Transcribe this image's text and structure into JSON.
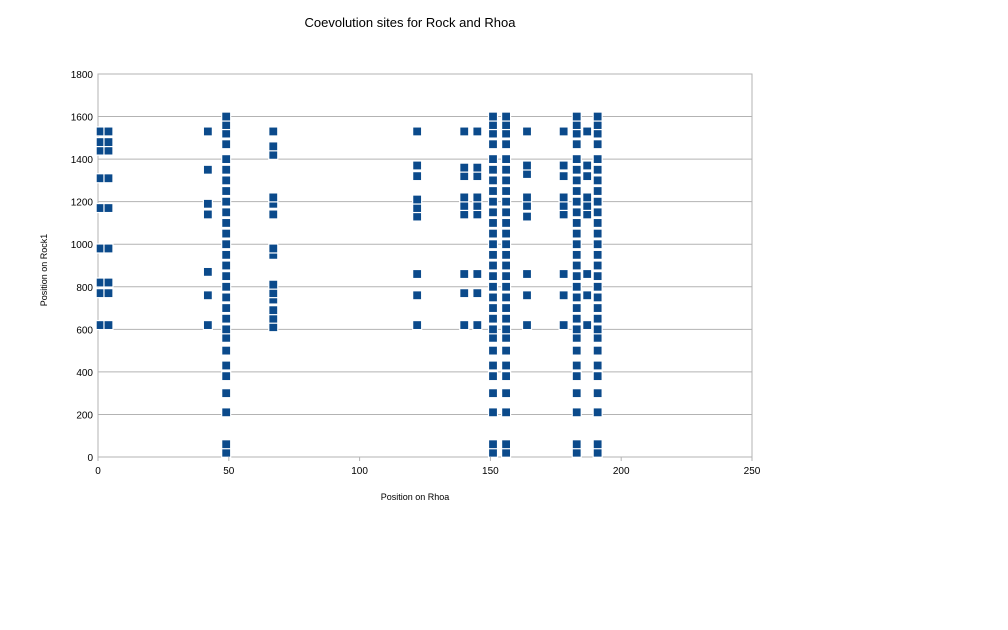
{
  "chart_data": {
    "type": "scatter",
    "title": "Coevolution sites for Rock and Rhoa",
    "xlabel": "Position on Rhoa",
    "ylabel": "Position on Rock1",
    "xlim": [
      0,
      250
    ],
    "ylim": [
      0,
      1800
    ],
    "x_ticks": [
      "0",
      "50",
      "100",
      "150",
      "200",
      "250"
    ],
    "y_ticks": [
      "0",
      "200",
      "400",
      "600",
      "800",
      "1000",
      "1200",
      "1400",
      "1600",
      "1800"
    ],
    "grid": true,
    "marker": "square",
    "color": "#0b4a8b",
    "series": [
      {
        "points": [
          [
            1,
            620
          ],
          [
            4,
            620
          ],
          [
            1,
            770
          ],
          [
            4,
            770
          ],
          [
            1,
            820
          ],
          [
            4,
            820
          ],
          [
            1,
            980
          ],
          [
            4,
            980
          ],
          [
            1,
            1170
          ],
          [
            4,
            1170
          ],
          [
            1,
            1310
          ],
          [
            4,
            1310
          ],
          [
            1,
            1440
          ],
          [
            4,
            1440
          ],
          [
            1,
            1480
          ],
          [
            4,
            1480
          ],
          [
            1,
            1530
          ],
          [
            4,
            1530
          ],
          [
            42,
            620
          ],
          [
            42,
            760
          ],
          [
            42,
            870
          ],
          [
            42,
            1140
          ],
          [
            42,
            1190
          ],
          [
            42,
            1350
          ],
          [
            42,
            1530
          ],
          [
            49,
            20
          ],
          [
            49,
            60
          ],
          [
            49,
            210
          ],
          [
            49,
            300
          ],
          [
            49,
            380
          ],
          [
            49,
            430
          ],
          [
            49,
            500
          ],
          [
            49,
            560
          ],
          [
            49,
            600
          ],
          [
            49,
            650
          ],
          [
            49,
            700
          ],
          [
            49,
            750
          ],
          [
            49,
            800
          ],
          [
            49,
            850
          ],
          [
            49,
            900
          ],
          [
            49,
            950
          ],
          [
            49,
            1000
          ],
          [
            49,
            1050
          ],
          [
            49,
            1100
          ],
          [
            49,
            1150
          ],
          [
            49,
            1200
          ],
          [
            49,
            1250
          ],
          [
            49,
            1300
          ],
          [
            49,
            1350
          ],
          [
            49,
            1400
          ],
          [
            49,
            1470
          ],
          [
            49,
            1520
          ],
          [
            49,
            1560
          ],
          [
            49,
            1600
          ],
          [
            67,
            610
          ],
          [
            67,
            650
          ],
          [
            67,
            690
          ],
          [
            67,
            740
          ],
          [
            67,
            770
          ],
          [
            67,
            810
          ],
          [
            67,
            950
          ],
          [
            67,
            980
          ],
          [
            67,
            1140
          ],
          [
            67,
            1190
          ],
          [
            67,
            1220
          ],
          [
            67,
            1420
          ],
          [
            67,
            1460
          ],
          [
            67,
            1530
          ],
          [
            122,
            620
          ],
          [
            122,
            760
          ],
          [
            122,
            860
          ],
          [
            122,
            1130
          ],
          [
            122,
            1170
          ],
          [
            122,
            1210
          ],
          [
            122,
            1320
          ],
          [
            122,
            1370
          ],
          [
            122,
            1530
          ],
          [
            140,
            620
          ],
          [
            145,
            620
          ],
          [
            140,
            770
          ],
          [
            145,
            770
          ],
          [
            140,
            860
          ],
          [
            145,
            860
          ],
          [
            140,
            1140
          ],
          [
            145,
            1140
          ],
          [
            140,
            1180
          ],
          [
            145,
            1180
          ],
          [
            140,
            1220
          ],
          [
            145,
            1220
          ],
          [
            140,
            1320
          ],
          [
            145,
            1320
          ],
          [
            140,
            1360
          ],
          [
            145,
            1360
          ],
          [
            140,
            1530
          ],
          [
            145,
            1530
          ],
          [
            151,
            20
          ],
          [
            151,
            60
          ],
          [
            151,
            210
          ],
          [
            151,
            300
          ],
          [
            151,
            380
          ],
          [
            151,
            430
          ],
          [
            151,
            500
          ],
          [
            151,
            560
          ],
          [
            151,
            600
          ],
          [
            151,
            650
          ],
          [
            151,
            700
          ],
          [
            151,
            750
          ],
          [
            151,
            800
          ],
          [
            151,
            850
          ],
          [
            151,
            900
          ],
          [
            151,
            950
          ],
          [
            151,
            1000
          ],
          [
            151,
            1050
          ],
          [
            151,
            1100
          ],
          [
            151,
            1150
          ],
          [
            151,
            1200
          ],
          [
            151,
            1250
          ],
          [
            151,
            1300
          ],
          [
            151,
            1350
          ],
          [
            151,
            1400
          ],
          [
            151,
            1470
          ],
          [
            151,
            1520
          ],
          [
            151,
            1560
          ],
          [
            151,
            1600
          ],
          [
            156,
            20
          ],
          [
            156,
            60
          ],
          [
            156,
            210
          ],
          [
            156,
            300
          ],
          [
            156,
            380
          ],
          [
            156,
            430
          ],
          [
            156,
            500
          ],
          [
            156,
            560
          ],
          [
            156,
            600
          ],
          [
            156,
            650
          ],
          [
            156,
            700
          ],
          [
            156,
            750
          ],
          [
            156,
            800
          ],
          [
            156,
            850
          ],
          [
            156,
            900
          ],
          [
            156,
            950
          ],
          [
            156,
            1000
          ],
          [
            156,
            1050
          ],
          [
            156,
            1100
          ],
          [
            156,
            1150
          ],
          [
            156,
            1200
          ],
          [
            156,
            1250
          ],
          [
            156,
            1300
          ],
          [
            156,
            1350
          ],
          [
            156,
            1400
          ],
          [
            156,
            1470
          ],
          [
            156,
            1520
          ],
          [
            156,
            1560
          ],
          [
            156,
            1600
          ],
          [
            164,
            620
          ],
          [
            164,
            760
          ],
          [
            164,
            860
          ],
          [
            164,
            1130
          ],
          [
            164,
            1180
          ],
          [
            164,
            1220
          ],
          [
            164,
            1330
          ],
          [
            164,
            1370
          ],
          [
            164,
            1530
          ],
          [
            178,
            620
          ],
          [
            178,
            760
          ],
          [
            178,
            860
          ],
          [
            178,
            1140
          ],
          [
            178,
            1180
          ],
          [
            178,
            1220
          ],
          [
            178,
            1320
          ],
          [
            178,
            1370
          ],
          [
            178,
            1530
          ],
          [
            183,
            20
          ],
          [
            183,
            60
          ],
          [
            183,
            210
          ],
          [
            183,
            300
          ],
          [
            183,
            380
          ],
          [
            183,
            430
          ],
          [
            183,
            500
          ],
          [
            183,
            560
          ],
          [
            183,
            600
          ],
          [
            183,
            650
          ],
          [
            183,
            700
          ],
          [
            183,
            750
          ],
          [
            183,
            800
          ],
          [
            183,
            850
          ],
          [
            183,
            900
          ],
          [
            183,
            950
          ],
          [
            183,
            1000
          ],
          [
            183,
            1050
          ],
          [
            183,
            1100
          ],
          [
            183,
            1150
          ],
          [
            183,
            1200
          ],
          [
            183,
            1250
          ],
          [
            183,
            1300
          ],
          [
            183,
            1350
          ],
          [
            183,
            1400
          ],
          [
            183,
            1470
          ],
          [
            183,
            1520
          ],
          [
            183,
            1560
          ],
          [
            183,
            1600
          ],
          [
            187,
            620
          ],
          [
            187,
            760
          ],
          [
            187,
            860
          ],
          [
            187,
            1140
          ],
          [
            187,
            1180
          ],
          [
            187,
            1220
          ],
          [
            187,
            1320
          ],
          [
            187,
            1370
          ],
          [
            187,
            1530
          ],
          [
            191,
            20
          ],
          [
            191,
            60
          ],
          [
            191,
            210
          ],
          [
            191,
            300
          ],
          [
            191,
            380
          ],
          [
            191,
            430
          ],
          [
            191,
            500
          ],
          [
            191,
            560
          ],
          [
            191,
            600
          ],
          [
            191,
            650
          ],
          [
            191,
            700
          ],
          [
            191,
            750
          ],
          [
            191,
            800
          ],
          [
            191,
            850
          ],
          [
            191,
            900
          ],
          [
            191,
            950
          ],
          [
            191,
            1000
          ],
          [
            191,
            1050
          ],
          [
            191,
            1100
          ],
          [
            191,
            1150
          ],
          [
            191,
            1200
          ],
          [
            191,
            1250
          ],
          [
            191,
            1300
          ],
          [
            191,
            1350
          ],
          [
            191,
            1400
          ],
          [
            191,
            1470
          ],
          [
            191,
            1520
          ],
          [
            191,
            1560
          ],
          [
            191,
            1600
          ]
        ]
      }
    ]
  }
}
